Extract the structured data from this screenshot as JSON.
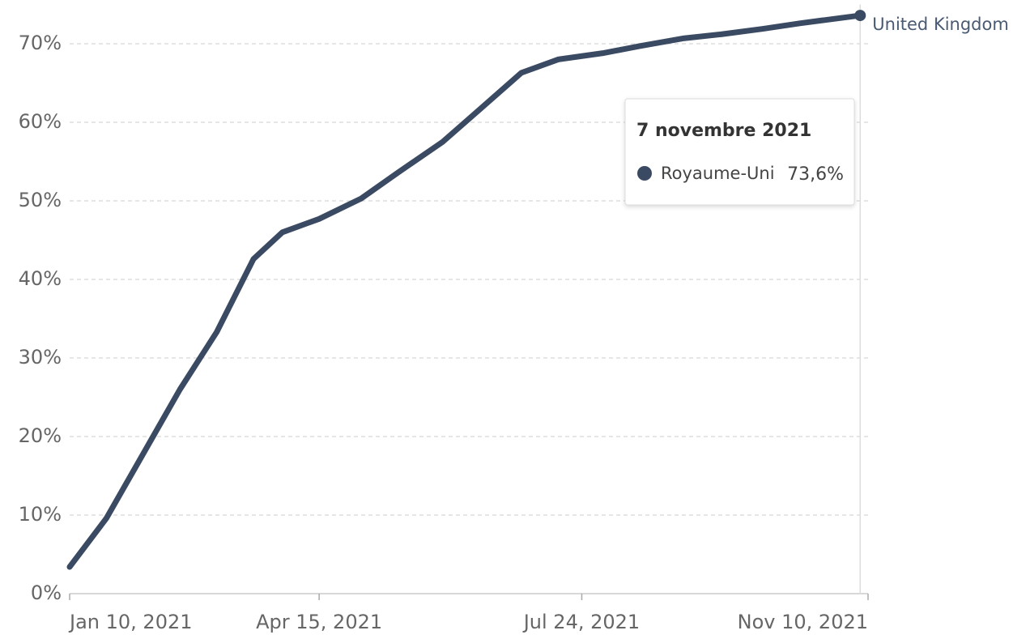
{
  "chart_data": {
    "type": "line",
    "x": [
      "2021-01-10",
      "2021-01-24",
      "2021-02-07",
      "2021-02-21",
      "2021-03-07",
      "2021-03-21",
      "2021-04-01",
      "2021-04-15",
      "2021-05-01",
      "2021-05-15",
      "2021-06-01",
      "2021-06-15",
      "2021-07-01",
      "2021-07-15",
      "2021-08-01",
      "2021-08-15",
      "2021-09-01",
      "2021-09-15",
      "2021-10-01",
      "2021-10-15",
      "2021-11-07"
    ],
    "series": [
      {
        "name": "United Kingdom",
        "color": "#3b4a63",
        "values": [
          3.4,
          9.6,
          17.8,
          26.0,
          33.3,
          42.6,
          46.0,
          47.7,
          50.3,
          53.6,
          57.5,
          61.6,
          66.3,
          68.0,
          68.8,
          69.7,
          70.7,
          71.2,
          71.9,
          72.6,
          73.6
        ]
      }
    ],
    "xlim": [
      "2021-01-10",
      "2021-11-10"
    ],
    "xticks": [
      {
        "value": "2021-01-10",
        "label": "Jan 10, 2021"
      },
      {
        "value": "2021-04-15",
        "label": "Apr 15, 2021"
      },
      {
        "value": "2021-07-24",
        "label": "Jul 24, 2021"
      },
      {
        "value": "2021-11-10",
        "label": "Nov 10, 2021"
      }
    ],
    "ylim": [
      0,
      75
    ],
    "yticks": [
      {
        "value": 0,
        "label": "0%"
      },
      {
        "value": 10,
        "label": "10%"
      },
      {
        "value": 20,
        "label": "20%"
      },
      {
        "value": 30,
        "label": "30%"
      },
      {
        "value": 40,
        "label": "40%"
      },
      {
        "value": 50,
        "label": "50%"
      },
      {
        "value": 60,
        "label": "60%"
      },
      {
        "value": 70,
        "label": "70%"
      }
    ],
    "grid": true,
    "tooltip": {
      "date": "7 novembre 2021",
      "series": "Royaume-Uni",
      "value": 73.6,
      "value_label": "73,6%"
    }
  }
}
